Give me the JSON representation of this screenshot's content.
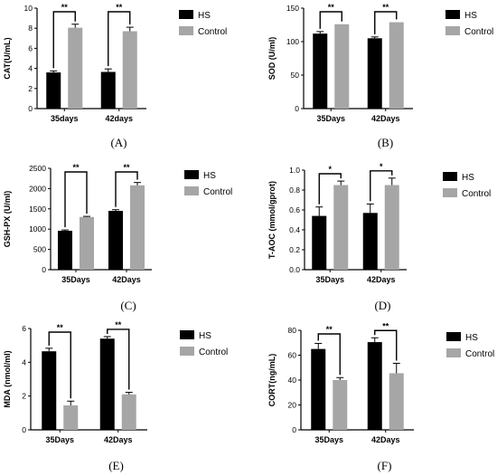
{
  "colors": {
    "hs": "#000000",
    "control": "#a6a6a6"
  },
  "chart_data": [
    {
      "panel": "(A)",
      "type": "bar",
      "ylabel": "CAT(U/mL)",
      "categories": [
        "35days",
        "42days"
      ],
      "ylim": [
        0,
        10
      ],
      "yticks": [
        0,
        2,
        4,
        6,
        8,
        10
      ],
      "series": [
        {
          "name": "HS",
          "values": [
            3.6,
            3.65
          ],
          "errors": [
            0.15,
            0.3
          ]
        },
        {
          "name": "Control",
          "values": [
            8.05,
            7.7
          ],
          "errors": [
            0.35,
            0.4
          ]
        }
      ],
      "significance": [
        "**",
        "**"
      ],
      "legend": "top-right"
    },
    {
      "panel": "(B)",
      "type": "bar",
      "ylabel": "SOD (U/ml)",
      "categories": [
        "35Days",
        "42Days"
      ],
      "ylim": [
        0,
        150
      ],
      "yticks": [
        0,
        50,
        100,
        150
      ],
      "series": [
        {
          "name": "HS",
          "values": [
            112,
            105
          ],
          "errors": [
            3,
            2
          ]
        },
        {
          "name": "Control",
          "values": [
            126,
            129
          ],
          "errors": [
            0,
            0
          ]
        }
      ],
      "significance": [
        "**",
        "**"
      ],
      "legend": "top-right"
    },
    {
      "panel": "(C)",
      "type": "bar",
      "ylabel": "GSH-PX (U/ml)",
      "categories": [
        "35Days",
        "42Days"
      ],
      "ylim": [
        0,
        2500
      ],
      "yticks": [
        0,
        500,
        1000,
        1500,
        2000,
        2500
      ],
      "series": [
        {
          "name": "HS",
          "values": [
            960,
            1450
          ],
          "errors": [
            20,
            30
          ]
        },
        {
          "name": "Control",
          "values": [
            1300,
            2080
          ],
          "errors": [
            15,
            70
          ]
        }
      ],
      "significance": [
        "**",
        "**"
      ],
      "legend": "top-right"
    },
    {
      "panel": "(D)",
      "type": "bar",
      "ylabel": "T-AOC (mmol/gprot)",
      "categories": [
        "35Days",
        "42Days"
      ],
      "ylim": [
        0,
        1.0
      ],
      "yticks": [
        "0.0",
        "0.2",
        "0.4",
        "0.6",
        "0.8",
        "1.0"
      ],
      "series": [
        {
          "name": "HS",
          "values": [
            0.54,
            0.57
          ],
          "errors": [
            0.09,
            0.09
          ]
        },
        {
          "name": "Control",
          "values": [
            0.85,
            0.85
          ],
          "errors": [
            0.04,
            0.07
          ]
        }
      ],
      "significance": [
        "*",
        "*"
      ],
      "legend": "top-right"
    },
    {
      "panel": "(E)",
      "type": "bar",
      "ylabel": "MDA (nmol/ml)",
      "categories": [
        "35Days",
        "42Days"
      ],
      "ylim": [
        0,
        6
      ],
      "yticks": [
        0,
        2,
        4,
        6
      ],
      "series": [
        {
          "name": "HS",
          "values": [
            4.65,
            5.4
          ],
          "errors": [
            0.18,
            0.12
          ]
        },
        {
          "name": "Control",
          "values": [
            1.45,
            2.1
          ],
          "errors": [
            0.25,
            0.12
          ]
        }
      ],
      "significance": [
        "**",
        "**"
      ],
      "legend": "top-right"
    },
    {
      "panel": "(F)",
      "type": "bar",
      "ylabel": "CORT(ng/mL)",
      "categories": [
        "35Days",
        "42Days"
      ],
      "ylim": [
        0,
        80
      ],
      "yticks": [
        0,
        20,
        40,
        60,
        80
      ],
      "series": [
        {
          "name": "HS",
          "values": [
            65,
            70.5
          ],
          "errors": [
            4.5,
            3.5
          ]
        },
        {
          "name": "Control",
          "values": [
            40,
            45.5
          ],
          "errors": [
            2,
            8
          ]
        }
      ],
      "significance": [
        "**",
        "**"
      ],
      "legend": "top-right"
    }
  ]
}
